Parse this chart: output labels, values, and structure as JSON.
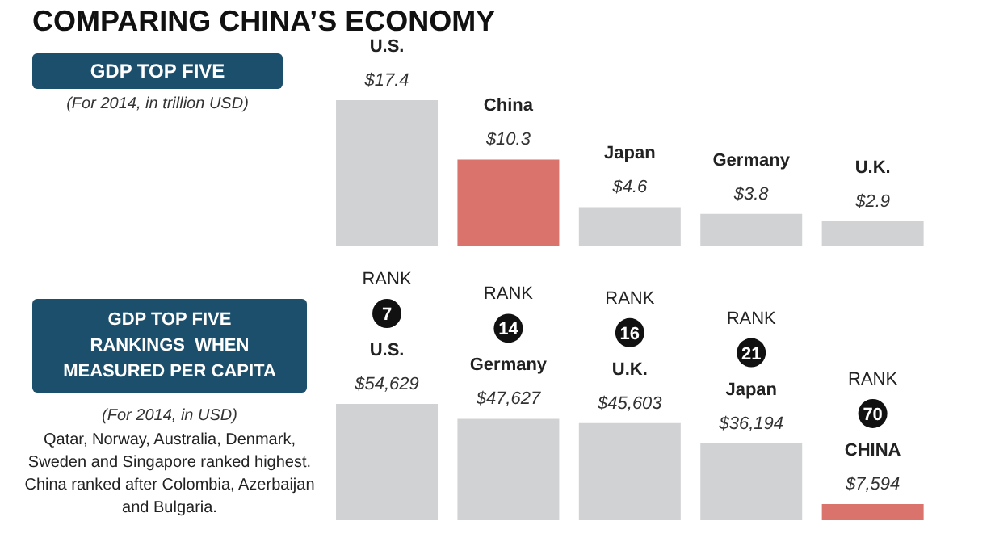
{
  "chart_data": [
    {
      "type": "bar",
      "title": "COMPARING CHINA’S ECONOMY",
      "subtitle": "GDP TOP FIVE",
      "annotations": [
        "(For 2014, in trillion USD)"
      ],
      "categories": [
        "U.S.",
        "China",
        "Japan",
        "Germany",
        "U.K."
      ],
      "values": [
        17.4,
        10.3,
        4.6,
        3.8,
        2.9
      ],
      "value_labels": [
        "$17.4",
        "$10.3",
        "$4.6",
        "$3.8",
        "$2.9"
      ],
      "colors": [
        "#d1d2d4",
        "#d9736b",
        "#d1d2d4",
        "#d1d2d4",
        "#d1d2d4"
      ]
    },
    {
      "type": "bar",
      "title": "GDP TOP FIVE RANKINGS  WHEN MEASURED PER CAPITA",
      "subtitle": "(For 2014, in USD)",
      "annotations": [
        "Qatar, Norway, Australia, Denmark, Sweden and Singapore ranked highest. China ranked after Colombia, Azerbaijan and Bulgaria.",
        "RANK 7",
        "RANK 14",
        "RANK 16",
        "RANK 21",
        "RANK 70"
      ],
      "categories": [
        "U.S.",
        "Germany",
        "U.K.",
        "Japan",
        "CHINA"
      ],
      "values": [
        54629,
        47627,
        45603,
        36194,
        7594
      ],
      "value_labels": [
        "$54,629",
        "$47,627",
        "$45,603",
        "$36,194",
        "$7,594"
      ],
      "colors": [
        "#d1d2d4",
        "#d1d2d4",
        "#d1d2d4",
        "#d1d2d4",
        "#d9736b"
      ]
    }
  ]
}
